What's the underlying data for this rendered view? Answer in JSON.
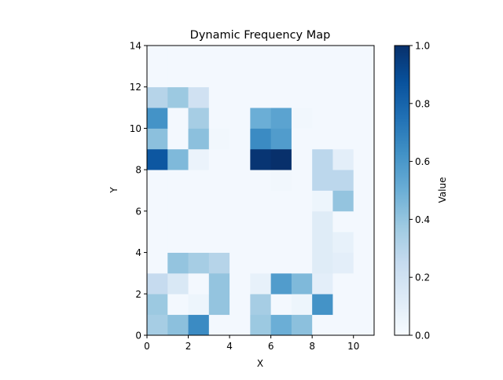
{
  "chart_data": {
    "type": "heatmap",
    "title": "Dynamic Frequency Map",
    "xlabel": "X",
    "ylabel": "Y",
    "xlim": [
      0,
      11
    ],
    "ylim": [
      0,
      14
    ],
    "x_ticks": [
      "0",
      "2",
      "4",
      "6",
      "8",
      "10"
    ],
    "y_ticks": [
      "0",
      "2",
      "4",
      "6",
      "8",
      "10",
      "12",
      "14"
    ],
    "colorbar": {
      "label": "Value",
      "range": [
        0,
        1
      ],
      "ticks": [
        "0.0",
        "0.2",
        "0.4",
        "0.6",
        "0.8",
        "1.0"
      ],
      "colormap": "Blues"
    },
    "grid": false,
    "rows_bottom_to_top": [
      [
        0.35,
        0.42,
        0.65,
        0.02,
        0.02,
        0.38,
        0.5,
        0.42,
        0.02,
        0.02,
        0.02
      ],
      [
        0.38,
        0.02,
        0.05,
        0.4,
        0.02,
        0.35,
        0.02,
        0.05,
        0.62,
        0.02,
        0.02
      ],
      [
        0.25,
        0.15,
        0.02,
        0.4,
        0.02,
        0.08,
        0.58,
        0.45,
        0.1,
        0.02,
        0.02
      ],
      [
        0.02,
        0.4,
        0.35,
        0.3,
        0.02,
        0.02,
        0.02,
        0.02,
        0.12,
        0.1,
        0.02
      ],
      [
        0.02,
        0.02,
        0.02,
        0.02,
        0.02,
        0.02,
        0.02,
        0.02,
        0.12,
        0.08,
        0.02
      ],
      [
        0.02,
        0.02,
        0.02,
        0.02,
        0.02,
        0.02,
        0.02,
        0.02,
        0.12,
        0.02,
        0.02
      ],
      [
        0.02,
        0.02,
        0.02,
        0.02,
        0.02,
        0.02,
        0.02,
        0.02,
        0.05,
        0.4,
        0.02
      ],
      [
        0.02,
        0.02,
        0.02,
        0.02,
        0.02,
        0.02,
        0.03,
        0.02,
        0.28,
        0.28,
        0.02
      ],
      [
        0.85,
        0.45,
        0.06,
        0.02,
        0.02,
        0.98,
        1.0,
        0.02,
        0.28,
        0.1,
        0.02
      ],
      [
        0.42,
        0.02,
        0.42,
        0.03,
        0.02,
        0.65,
        0.58,
        0.02,
        0.02,
        0.02,
        0.02
      ],
      [
        0.62,
        0.02,
        0.35,
        0.02,
        0.02,
        0.5,
        0.55,
        0.03,
        0.02,
        0.02,
        0.02
      ],
      [
        0.3,
        0.38,
        0.2,
        0.02,
        0.02,
        0.02,
        0.02,
        0.02,
        0.02,
        0.02,
        0.02
      ],
      [
        0.02,
        0.02,
        0.02,
        0.02,
        0.02,
        0.02,
        0.02,
        0.02,
        0.02,
        0.02,
        0.02
      ],
      [
        0.02,
        0.02,
        0.02,
        0.02,
        0.02,
        0.02,
        0.02,
        0.02,
        0.02,
        0.02,
        0.02
      ]
    ]
  }
}
